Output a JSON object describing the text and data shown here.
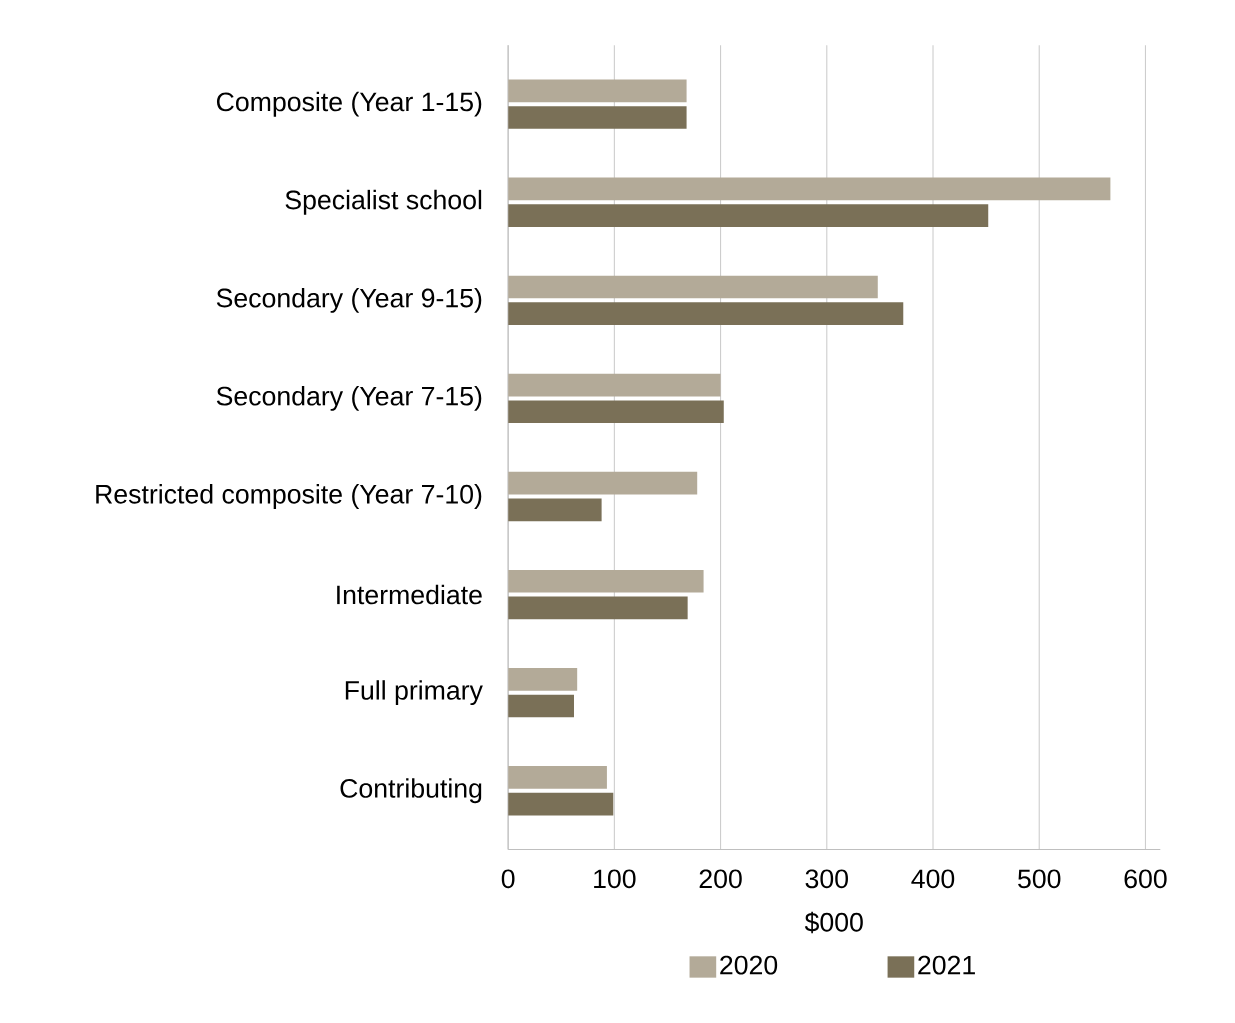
{
  "chart_data": {
    "type": "bar",
    "orientation": "horizontal",
    "xlabel": "$000",
    "categories": [
      "Composite  (Year 1-15)",
      "Specialist school",
      "Secondary  (Year 9-15)",
      "Secondary  (Year 7-15)",
      "Restricted composite (Year 7-10)",
      "Intermediate",
      "Full primary",
      "Contributing"
    ],
    "series": [
      {
        "name": "2020",
        "color": "#b3aa98",
        "values": [
          168,
          567,
          348,
          200,
          178,
          184,
          65,
          93
        ]
      },
      {
        "name": "2021",
        "color": "#7a7057",
        "values": [
          168,
          452,
          372,
          203,
          88,
          169,
          62,
          99
        ]
      }
    ],
    "xlim": [
      0,
      614
    ],
    "xticks": [
      0,
      100,
      200,
      300,
      400,
      500,
      600
    ],
    "grid": "x",
    "legend": "bottom"
  }
}
